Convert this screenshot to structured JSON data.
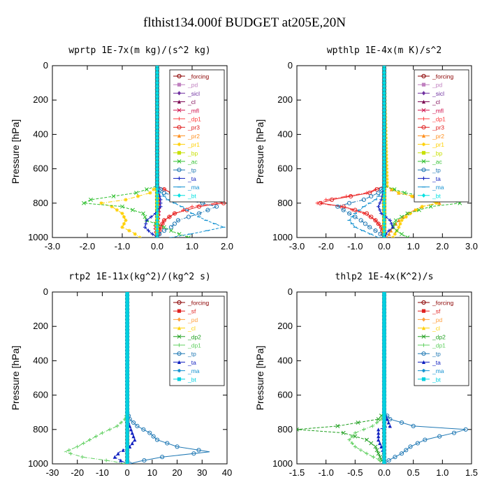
{
  "page": {
    "title": "flthist134.000f  BUDGET at205E,20N"
  },
  "colors": {
    "forcing": "#8b0000",
    "pd": "#c080c0",
    "sicl": "#7030a0",
    "cl": "#7a0050",
    "mfl": "#d0104c",
    "dp1": "#ff4040",
    "pr3": "#e02020",
    "pr2": "#ff9020",
    "pr1": "#ffd000",
    "bp": "#c8e000",
    "ac": "#30c030",
    "tp": "#1f78b4",
    "ta": "#1020c0",
    "ma": "#1090d0",
    "bt": "#00e0e0",
    "sf": "#e02020",
    "pd2": "#ffa040",
    "cl2": "#ffd000",
    "dp2": "#20a020",
    "dp1b": "#60d060",
    "bt2": "#00d0e0"
  },
  "chart_data": [
    {
      "type": "line",
      "title": "wprtp  1E-7x(m kg)/(s^2 kg)",
      "ylabel": "Pressure [hPa]",
      "xlim": [
        -3,
        2
      ],
      "ylim": [
        1000,
        0
      ],
      "xticks": [
        -3,
        -2,
        -1,
        0,
        1,
        2
      ],
      "xtick_labels": [
        "-3.0",
        "-2.0",
        "-1.0",
        "0.0",
        "1.0",
        "2.0"
      ],
      "yticks": [
        0,
        200,
        400,
        600,
        800,
        1000
      ],
      "legend": "top-right",
      "pressure": [
        0,
        700,
        740,
        780,
        800,
        820,
        860,
        900,
        940,
        970,
        1000
      ],
      "series": [
        {
          "name": "_forcing",
          "color": "#8b0000",
          "x": [
            0,
            0,
            0,
            0,
            0,
            0,
            0,
            0,
            0,
            0,
            0
          ]
        },
        {
          "name": "_pd",
          "color": "#c080c0",
          "x": [
            0,
            0,
            0,
            0,
            0,
            0,
            0,
            0,
            0,
            0,
            0
          ]
        },
        {
          "name": "_sicl",
          "color": "#7030a0",
          "x": [
            0,
            0,
            0,
            0,
            0,
            0,
            0,
            0,
            0,
            0,
            0
          ]
        },
        {
          "name": "_cl",
          "color": "#7a0050",
          "x": [
            0,
            0,
            0.02,
            0.05,
            0.05,
            0.05,
            0.04,
            0.02,
            0.05,
            0.03,
            0
          ]
        },
        {
          "name": "_mfl",
          "color": "#d0104c",
          "x": [
            0,
            0,
            0.02,
            0.05,
            0.05,
            0.05,
            0.04,
            0.02,
            -0.05,
            -0.03,
            0
          ]
        },
        {
          "name": "_dp1",
          "color": "#ff4040",
          "x": [
            0,
            0,
            0.4,
            1.5,
            1.7,
            1.0,
            0.5,
            0.2,
            0.1,
            0.05,
            0
          ]
        },
        {
          "name": "_pr3",
          "color": "#e02020",
          "x": [
            0,
            0,
            0.4,
            1.5,
            1.9,
            1.2,
            0.5,
            0.2,
            0.1,
            0.05,
            0
          ]
        },
        {
          "name": "_pr2",
          "color": "#ff9020",
          "x": [
            0,
            0,
            0,
            0,
            0,
            0,
            0,
            0,
            0,
            0,
            0
          ]
        },
        {
          "name": "_pr1",
          "color": "#ffd000",
          "x": [
            0,
            0,
            -0.2,
            -0.9,
            -1.6,
            -1.3,
            -1.0,
            -0.9,
            -1.0,
            -0.7,
            -0.5
          ]
        },
        {
          "name": "_bp",
          "color": "#c8e000",
          "x": [
            0,
            0,
            0,
            0,
            0,
            0,
            0,
            0,
            0,
            0,
            0
          ]
        },
        {
          "name": "_ac",
          "color": "#30c030",
          "x": [
            0,
            0,
            -0.6,
            -1.9,
            -2.1,
            -1.0,
            -0.4,
            -0.3,
            0.2,
            0.5,
            0.9
          ]
        },
        {
          "name": "_tp",
          "color": "#1f78b4",
          "x": [
            0,
            0,
            0.2,
            0.8,
            1.3,
            1.7,
            1.2,
            0.6,
            0.4,
            0.1,
            0
          ]
        },
        {
          "name": "_ta",
          "color": "#1020c0",
          "x": [
            0,
            0,
            0.05,
            0.1,
            0.1,
            0.1,
            -0.05,
            -0.3,
            -0.35,
            -0.2,
            0
          ]
        },
        {
          "name": "_ma",
          "color": "#1090d0",
          "x": [
            0,
            0,
            0.1,
            0.3,
            0.5,
            0.7,
            1.0,
            1.4,
            1.9,
            1.2,
            0.4
          ]
        },
        {
          "name": "_bt",
          "color": "#00e0e0",
          "x": [
            0,
            0,
            0,
            0,
            0,
            0,
            0,
            0,
            0,
            0,
            0
          ]
        }
      ]
    },
    {
      "type": "line",
      "title": "wpthlp  1E-4x(m K)/s^2",
      "ylabel": "Pressure [hPa]",
      "xlim": [
        -3,
        3
      ],
      "ylim": [
        1000,
        0
      ],
      "xticks": [
        -3,
        -2,
        -1,
        0,
        1,
        2,
        3
      ],
      "xtick_labels": [
        "-3.0",
        "-2.0",
        "-1.0",
        "0.0",
        "1.0",
        "2.0",
        "3.0"
      ],
      "yticks": [
        0,
        200,
        400,
        600,
        800,
        1000
      ],
      "legend": "top-right",
      "pressure": [
        0,
        700,
        740,
        780,
        800,
        820,
        860,
        900,
        940,
        970,
        1000
      ],
      "series": [
        {
          "name": "_forcing",
          "color": "#8b0000",
          "x": [
            0,
            0,
            0,
            0,
            0,
            0,
            0,
            0,
            0,
            0,
            0
          ]
        },
        {
          "name": "_pd",
          "color": "#c080c0",
          "x": [
            0,
            0,
            0,
            0,
            0,
            0,
            0,
            0,
            0,
            0,
            0
          ]
        },
        {
          "name": "_sicl",
          "color": "#7030a0",
          "x": [
            0,
            0,
            0,
            0,
            0,
            0,
            0,
            0,
            0,
            0,
            0
          ]
        },
        {
          "name": "_cl",
          "color": "#7a0050",
          "x": [
            0,
            0,
            0,
            0,
            0,
            0,
            0,
            0,
            0,
            0,
            0
          ]
        },
        {
          "name": "_mfl",
          "color": "#d0104c",
          "x": [
            0,
            0,
            0,
            0,
            0,
            0,
            0,
            0,
            0,
            0,
            0
          ]
        },
        {
          "name": "_dp1",
          "color": "#ff4040",
          "x": [
            0,
            0,
            -0.6,
            -2.0,
            -2.3,
            -1.5,
            -0.7,
            -0.3,
            -0.1,
            -0.05,
            0
          ]
        },
        {
          "name": "_pr3",
          "color": "#e02020",
          "x": [
            0,
            0,
            -0.5,
            -1.8,
            -2.2,
            -1.4,
            -0.6,
            -0.3,
            -0.1,
            -0.05,
            0
          ]
        },
        {
          "name": "_pr2",
          "color": "#ff9020",
          "x": [
            0,
            0,
            0.5,
            1.5,
            1.9,
            1.3,
            0.8,
            0.5,
            0.3,
            0.2,
            0.1
          ]
        },
        {
          "name": "_pr1",
          "color": "#ffd000",
          "x": [
            0,
            0.1,
            0.5,
            1.4,
            1.8,
            1.3,
            0.9,
            0.6,
            0.5,
            0.4,
            0.3
          ]
        },
        {
          "name": "_bp",
          "color": "#c8e000",
          "x": [
            0,
            0,
            0,
            0,
            0,
            0,
            0,
            0,
            0,
            0,
            0
          ]
        },
        {
          "name": "_ac",
          "color": "#30c030",
          "x": [
            0,
            0,
            0.7,
            2.2,
            2.6,
            1.6,
            0.8,
            0.4,
            0.3,
            0.5,
            0.8
          ]
        },
        {
          "name": "_tp",
          "color": "#1f78b4",
          "x": [
            0,
            0,
            -0.2,
            -0.7,
            -1.2,
            -1.6,
            -1.2,
            -0.8,
            -0.5,
            -0.2,
            0
          ]
        },
        {
          "name": "_ta",
          "color": "#1020c0",
          "x": [
            0,
            0,
            -0.05,
            -0.1,
            -0.15,
            -0.2,
            -0.1,
            0.2,
            0.3,
            0.1,
            0
          ]
        },
        {
          "name": "_ma",
          "color": "#1090d0",
          "x": [
            0,
            0,
            -0.1,
            -0.3,
            -0.5,
            -0.7,
            -1.0,
            -1.2,
            -1.0,
            -0.6,
            -0.2
          ]
        },
        {
          "name": "_bt",
          "color": "#00e0e0",
          "x": [
            0,
            0,
            0,
            0,
            0,
            0,
            0,
            0,
            0,
            0,
            0
          ]
        }
      ]
    },
    {
      "type": "line",
      "title": "rtp2  1E-11x(kg^2)/(kg^2 s)",
      "ylabel": "Pressure [hPa]",
      "xlim": [
        -30,
        40
      ],
      "ylim": [
        1000,
        0
      ],
      "xticks": [
        -30,
        -20,
        -10,
        0,
        10,
        20,
        30,
        40
      ],
      "xtick_labels": [
        "-30",
        "-20",
        "-10",
        "0",
        "10",
        "20",
        "30",
        "40"
      ],
      "yticks": [
        0,
        200,
        400,
        600,
        800,
        1000
      ],
      "legend": "top-right",
      "pressure": [
        0,
        700,
        740,
        780,
        820,
        860,
        900,
        930,
        960,
        985,
        1000
      ],
      "series": [
        {
          "name": "_forcing",
          "color": "#8b0000",
          "x": [
            0,
            0,
            0,
            0,
            0,
            0,
            0,
            0,
            0,
            0,
            0
          ]
        },
        {
          "name": "_sf",
          "color": "#e02020",
          "x": [
            0,
            0,
            0,
            0,
            0,
            0,
            0,
            0,
            0,
            0,
            0
          ]
        },
        {
          "name": "_pd",
          "color": "#ffa040",
          "x": [
            0,
            0,
            0,
            0,
            0,
            0,
            0,
            0,
            0,
            0,
            0
          ]
        },
        {
          "name": "_cl",
          "color": "#ffd000",
          "x": [
            0,
            0,
            0,
            0,
            0,
            0,
            0,
            0,
            0,
            0,
            0
          ]
        },
        {
          "name": "_dp2",
          "color": "#20a020",
          "x": [
            0,
            0,
            0,
            0,
            0,
            0,
            0,
            0,
            0,
            0,
            0
          ]
        },
        {
          "name": "_dp1",
          "color": "#60d060",
          "x": [
            0,
            0,
            -1,
            -4,
            -10,
            -15,
            -20,
            -25,
            -18,
            -6,
            -1
          ]
        },
        {
          "name": "_tp",
          "color": "#1f78b4",
          "x": [
            0,
            0,
            1,
            4,
            9,
            12,
            20,
            33,
            14,
            5,
            1
          ]
        },
        {
          "name": "_ta",
          "color": "#1020c0",
          "x": [
            0,
            0,
            0,
            1,
            2,
            3,
            1,
            -3,
            -5,
            -2,
            0
          ]
        },
        {
          "name": "_ma",
          "color": "#1090d0",
          "x": [
            0,
            0,
            0,
            0,
            0,
            0,
            0,
            0,
            0,
            0,
            0
          ]
        },
        {
          "name": "_bt",
          "color": "#00d0e0",
          "x": [
            0,
            0,
            0,
            0,
            0,
            0,
            0,
            0,
            0,
            0,
            0
          ]
        }
      ]
    },
    {
      "type": "line",
      "title": "thlp2  1E-4x(K^2)/s",
      "ylabel": "Pressure [hPa]",
      "xlim": [
        -1.5,
        1.5
      ],
      "ylim": [
        1000,
        0
      ],
      "xticks": [
        -1.5,
        -1.0,
        -0.5,
        0,
        0.5,
        1.0,
        1.5
      ],
      "xtick_labels": [
        "-1.5",
        "-1.0",
        "-0.5",
        "0.0",
        "0.5",
        "1.0",
        "1.5"
      ],
      "yticks": [
        0,
        200,
        400,
        600,
        800,
        1000
      ],
      "legend": "top-right",
      "pressure": [
        0,
        700,
        740,
        780,
        800,
        820,
        860,
        900,
        940,
        975,
        1000
      ],
      "series": [
        {
          "name": "_forcing",
          "color": "#8b0000",
          "x": [
            0,
            0,
            0,
            0,
            0,
            0,
            0,
            0,
            0,
            0,
            0
          ]
        },
        {
          "name": "_sf",
          "color": "#e02020",
          "x": [
            0,
            0,
            0,
            0,
            0,
            0,
            0,
            0,
            0,
            0,
            0
          ]
        },
        {
          "name": "_pd",
          "color": "#ffa040",
          "x": [
            0,
            0,
            0,
            0,
            0,
            0,
            0,
            0,
            0,
            0,
            0
          ]
        },
        {
          "name": "_cl",
          "color": "#ffd000",
          "x": [
            0,
            0,
            0,
            0,
            0,
            0,
            0,
            0,
            0,
            0,
            0
          ]
        },
        {
          "name": "_dp2",
          "color": "#20a020",
          "x": [
            0,
            0,
            -0.1,
            -0.8,
            -1.5,
            -0.7,
            -0.3,
            -0.15,
            -0.1,
            -0.05,
            0
          ]
        },
        {
          "name": "_dp1",
          "color": "#60d060",
          "x": [
            0,
            0,
            -0.05,
            -0.2,
            -0.35,
            -0.5,
            -0.6,
            -0.5,
            -0.3,
            -0.1,
            0
          ]
        },
        {
          "name": "_tp",
          "color": "#1f78b4",
          "x": [
            0,
            0,
            0.1,
            0.5,
            1.4,
            1.2,
            0.7,
            0.45,
            0.3,
            0.1,
            0
          ]
        },
        {
          "name": "_ta",
          "color": "#1020c0",
          "x": [
            0,
            0,
            0.05,
            0.1,
            -0.1,
            -0.1,
            -0.1,
            -0.05,
            0,
            0,
            0
          ]
        },
        {
          "name": "_ma",
          "color": "#1090d0",
          "x": [
            0,
            0,
            0,
            0,
            0,
            0,
            0,
            0,
            0,
            0,
            0
          ]
        },
        {
          "name": "_bt",
          "color": "#00d0e0",
          "x": [
            0,
            0,
            0,
            0,
            0,
            0,
            0,
            0,
            0,
            0,
            0
          ]
        }
      ]
    }
  ]
}
